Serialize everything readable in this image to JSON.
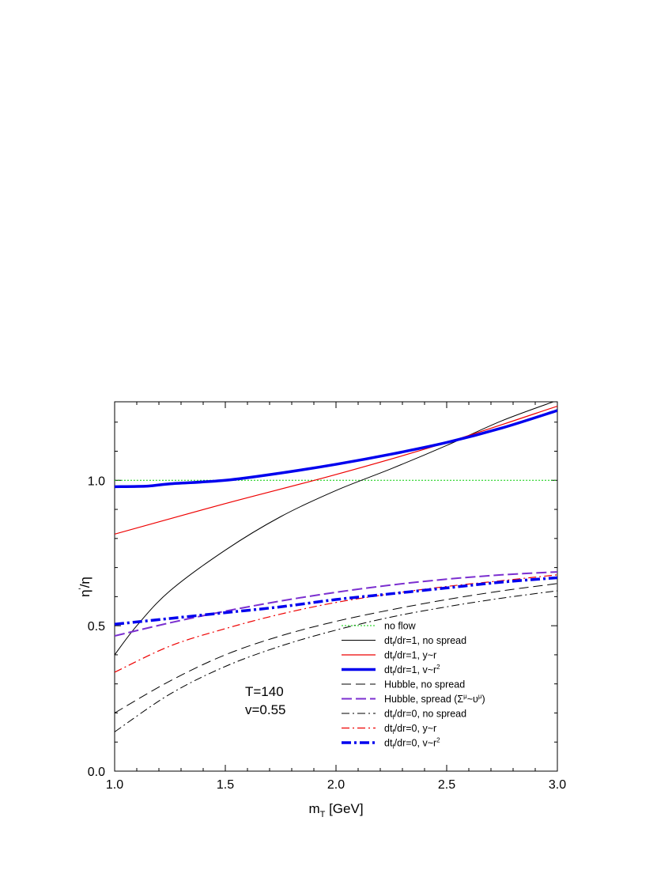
{
  "chart_data": {
    "type": "line",
    "xlabel": {
      "main": "m",
      "sub": "T",
      "rest": " [GeV]"
    },
    "ylabel": {
      "main": "η",
      "sup": "'",
      "rest": "/η"
    },
    "xlim": [
      1.0,
      3.0
    ],
    "ylim": [
      0.0,
      1.27
    ],
    "x_ticks": [
      "1.0",
      "1.5",
      "2.0",
      "2.5",
      "3.0"
    ],
    "y_ticks": [
      "0.0",
      "0.5",
      "1.0"
    ],
    "grid": false,
    "legend_position": "bottom-right",
    "annotations": [
      "T=140",
      "v=0.55"
    ],
    "series": [
      {
        "name": "no flow",
        "legend": {
          "pre": "no flow"
        },
        "color": "#00cc00",
        "width": 1,
        "dash": "2,2",
        "x": [
          1.0,
          3.0
        ],
        "y": [
          1.0,
          1.0
        ]
      },
      {
        "name": "dt_f/dr=1, no spread",
        "legend": {
          "pre": "dt",
          "sub": "f",
          "post": "/dr=1, no spread"
        },
        "color": "#000000",
        "width": 1,
        "dash": "",
        "x": [
          1.0,
          1.1,
          1.25,
          1.5,
          1.75,
          2.0,
          2.25,
          2.5,
          2.75,
          3.0
        ],
        "y": [
          0.4,
          0.5,
          0.62,
          0.76,
          0.875,
          0.965,
          1.04,
          1.12,
          1.205,
          1.275
        ]
      },
      {
        "name": "dt_f/dr=1, y~r",
        "legend": {
          "pre": "dt",
          "sub": "f",
          "post": "/dr=1, y~r"
        },
        "color": "#ee0000",
        "width": 1.2,
        "dash": "",
        "x": [
          1.0,
          1.5,
          2.0,
          2.5,
          3.0
        ],
        "y": [
          0.815,
          0.92,
          1.02,
          1.13,
          1.255
        ]
      },
      {
        "name": "dt_f/dr=1, v~r²",
        "legend": {
          "pre": "dt",
          "sub": "f",
          "post": "/dr=1, v~r",
          "sup": "2"
        },
        "color": "#0000ee",
        "width": 3.5,
        "dash": "",
        "x": [
          1.0,
          1.15,
          1.25,
          1.5,
          1.75,
          2.0,
          2.25,
          2.5,
          2.75,
          3.0
        ],
        "y": [
          0.978,
          0.98,
          0.988,
          1.0,
          1.025,
          1.055,
          1.09,
          1.13,
          1.18,
          1.24
        ]
      },
      {
        "name": "Hubble, no spread",
        "legend": {
          "pre": "Hubble, no spread"
        },
        "color": "#000000",
        "width": 1,
        "dash": "12,6",
        "x": [
          1.0,
          1.25,
          1.5,
          1.75,
          2.0,
          2.25,
          2.5,
          2.75,
          3.0
        ],
        "y": [
          0.2,
          0.31,
          0.4,
          0.465,
          0.515,
          0.555,
          0.59,
          0.62,
          0.645
        ]
      },
      {
        "name": "Hubble, spread (Σ^μ~υ^μ)",
        "legend": {
          "pre": "Hubble, spread (Σ",
          "sup": "μ",
          "post": "~υ",
          "sup2": "μ",
          "post2": ")"
        },
        "color": "#7b2fd0",
        "width": 2,
        "dash": "13,5",
        "x": [
          1.0,
          1.25,
          1.5,
          1.75,
          2.0,
          2.25,
          2.5,
          2.75,
          3.0
        ],
        "y": [
          0.465,
          0.51,
          0.55,
          0.585,
          0.615,
          0.64,
          0.66,
          0.675,
          0.685
        ]
      },
      {
        "name": "dt_f/dr=0, no spread",
        "legend": {
          "pre": "dt",
          "sub": "f",
          "post": "/dr=0, no spread"
        },
        "color": "#000000",
        "width": 1,
        "dash": "10,4,2,4",
        "x": [
          1.0,
          1.25,
          1.5,
          1.75,
          2.0,
          2.25,
          2.5,
          2.75,
          3.0
        ],
        "y": [
          0.135,
          0.265,
          0.36,
          0.43,
          0.485,
          0.53,
          0.565,
          0.595,
          0.62
        ]
      },
      {
        "name": "dt_f/dr=0, y~r",
        "legend": {
          "pre": "dt",
          "sub": "f",
          "post": "/dr=0, y~r"
        },
        "color": "#ee0000",
        "width": 1.2,
        "dash": "10,4,2,4",
        "x": [
          1.0,
          1.25,
          1.5,
          1.75,
          2.0,
          2.25,
          2.5,
          2.75,
          3.0
        ],
        "y": [
          0.34,
          0.43,
          0.49,
          0.54,
          0.58,
          0.61,
          0.635,
          0.655,
          0.675
        ]
      },
      {
        "name": "dt_f/dr=0, v~r²",
        "legend": {
          "pre": "dt",
          "sub": "f",
          "post": "/dr=0, v~r",
          "sup": "2"
        },
        "color": "#0000ee",
        "width": 3.5,
        "dash": "12,4,3,4",
        "x": [
          1.0,
          1.25,
          1.5,
          1.75,
          2.0,
          2.25,
          2.5,
          2.75,
          3.0
        ],
        "y": [
          0.505,
          0.525,
          0.545,
          0.565,
          0.59,
          0.61,
          0.63,
          0.65,
          0.665
        ]
      }
    ]
  }
}
